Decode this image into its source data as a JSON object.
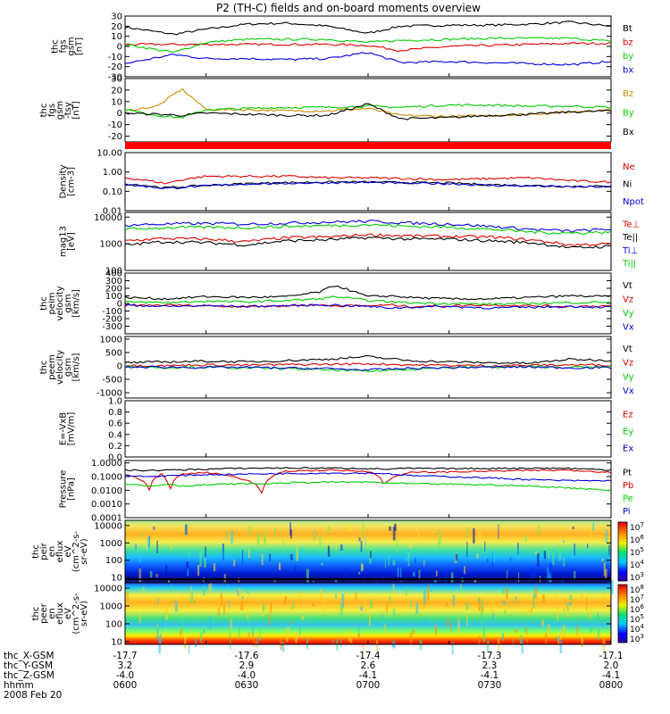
{
  "title": "P2 (TH-C) fields and on-board moments overview",
  "chart_data": [
    {
      "id": "fgs-gsm",
      "type": "line",
      "ylabel_lines": [
        "thc",
        "fgs",
        "gsm",
        "[nT]"
      ],
      "ylim": [
        -30,
        30
      ],
      "yticks": [
        -30,
        -20,
        -10,
        0,
        10,
        20,
        30
      ],
      "x": [
        -17.7,
        -17.64,
        -17.6,
        -17.55,
        -17.5,
        -17.45,
        -17.4,
        -17.36,
        -17.3,
        -17.25,
        -17.2,
        -17.15,
        -17.1
      ],
      "series": [
        {
          "name": "Bt",
          "color": "#000000",
          "values": [
            19,
            12,
            17,
            22,
            23,
            20,
            13,
            20,
            21,
            21,
            22,
            24,
            20
          ]
        },
        {
          "name": "bz",
          "color": "#dd0000",
          "values": [
            2,
            2,
            2,
            2,
            2,
            2,
            1,
            -4,
            0,
            1,
            2,
            3,
            3
          ]
        },
        {
          "name": "by",
          "color": "#00cc00",
          "values": [
            2,
            -6,
            4,
            7,
            7,
            7,
            4,
            6,
            7,
            8,
            8,
            8,
            5
          ]
        },
        {
          "name": "bx",
          "color": "#0000dd",
          "values": [
            -17,
            -8,
            -12,
            -12,
            -13,
            -12,
            -6,
            -16,
            -15,
            -16,
            -17,
            -18,
            -15
          ]
        }
      ]
    },
    {
      "id": "fgs-gsm-tsy",
      "type": "line",
      "ylabel_lines": [
        "thc",
        "fgs",
        "gsm",
        "-tsy",
        "[nT]"
      ],
      "ylim": [
        -25,
        30
      ],
      "yticks": [
        -20,
        -10,
        0,
        10,
        20,
        30
      ],
      "x": [
        -17.7,
        -17.66,
        -17.63,
        -17.6,
        -17.55,
        -17.5,
        -17.45,
        -17.4,
        -17.36,
        -17.3,
        -17.25,
        -17.2,
        -17.15,
        -17.1
      ],
      "series": [
        {
          "name": "Bz",
          "color": "#cc8800",
          "values": [
            2,
            6,
            21,
            3,
            3,
            2,
            2,
            4,
            -2,
            -3,
            -2,
            -1,
            1,
            3
          ]
        },
        {
          "name": "By",
          "color": "#00cc00",
          "values": [
            3,
            -2,
            -4,
            3,
            4,
            5,
            5,
            6,
            5,
            7,
            7,
            6,
            6,
            5
          ]
        },
        {
          "name": "Bx",
          "color": "#000000",
          "values": [
            0,
            -1,
            -2,
            0,
            -1,
            -2,
            -2,
            8,
            -5,
            -4,
            -2,
            -1,
            1,
            2
          ]
        }
      ]
    },
    {
      "id": "status-bar",
      "type": "area",
      "color": "#ff0000"
    },
    {
      "id": "density",
      "type": "line",
      "ylabel_lines": [
        "Density",
        "[cm-3]"
      ],
      "scale": "log",
      "ylim": [
        0.01,
        10
      ],
      "yticks": [
        0.01,
        0.1,
        1,
        10
      ],
      "ytick_labels": [
        "0.01",
        "0.10",
        "1.00",
        "10.00"
      ],
      "x": [
        -17.7,
        -17.65,
        -17.6,
        -17.55,
        -17.5,
        -17.45,
        -17.4,
        -17.35,
        -17.3,
        -17.25,
        -17.2,
        -17.15,
        -17.1
      ],
      "series": [
        {
          "name": "Ne",
          "color": "#dd0000",
          "values": [
            0.5,
            0.25,
            0.6,
            0.6,
            0.6,
            0.5,
            0.5,
            0.45,
            0.4,
            0.45,
            0.5,
            0.35,
            0.3
          ]
        },
        {
          "name": "Ni",
          "color": "#000000",
          "values": [
            0.25,
            0.15,
            0.2,
            0.25,
            0.28,
            0.3,
            0.3,
            0.28,
            0.27,
            0.22,
            0.2,
            0.18,
            0.18
          ]
        },
        {
          "name": "Npot",
          "color": "#0000dd",
          "values": [
            0.22,
            0.14,
            0.19,
            0.24,
            0.26,
            0.28,
            0.29,
            0.26,
            0.25,
            0.2,
            0.19,
            0.17,
            0.17
          ]
        }
      ]
    },
    {
      "id": "temperature",
      "type": "line",
      "ylabel_lines": [
        "mag13",
        "[eV]"
      ],
      "scale": "log",
      "ylim": [
        100,
        15000
      ],
      "yticks": [
        100,
        1000,
        10000
      ],
      "ytick_labels": [
        "100",
        "1000",
        "10000"
      ],
      "x": [
        -17.7,
        -17.65,
        -17.6,
        -17.55,
        -17.5,
        -17.45,
        -17.4,
        -17.35,
        -17.3,
        -17.25,
        -17.2,
        -17.15,
        -17.1
      ],
      "series": [
        {
          "name": "Te⊥",
          "color": "#dd0000",
          "values": [
            1300,
            1600,
            1500,
            1200,
            1700,
            1800,
            2200,
            2000,
            1900,
            1800,
            1400,
            900,
            1000
          ]
        },
        {
          "name": "Te||",
          "color": "#000000",
          "values": [
            900,
            1200,
            1100,
            900,
            1300,
            1400,
            1700,
            1500,
            1500,
            1300,
            1100,
            700,
            800
          ]
        },
        {
          "name": "Ti⊥",
          "color": "#0000dd",
          "values": [
            5000,
            5500,
            5800,
            5500,
            6000,
            6500,
            7000,
            6000,
            5500,
            4500,
            3500,
            3000,
            3500
          ]
        },
        {
          "name": "Ti||",
          "color": "#00cc00",
          "values": [
            3500,
            4000,
            4200,
            4000,
            4500,
            4800,
            5200,
            4500,
            4200,
            3500,
            2800,
            2500,
            2800
          ]
        }
      ]
    },
    {
      "id": "peim-velocity",
      "type": "line",
      "ylabel_lines": [
        "thc",
        "peim",
        "velocity",
        "gsm",
        "[km/s]"
      ],
      "ylim": [
        -400,
        400
      ],
      "yticks": [
        -300,
        -200,
        -100,
        0,
        100,
        200,
        300,
        400
      ],
      "x": [
        -17.7,
        -17.65,
        -17.6,
        -17.55,
        -17.5,
        -17.46,
        -17.44,
        -17.4,
        -17.37,
        -17.35,
        -17.3,
        -17.25,
        -17.2,
        -17.15,
        -17.1
      ],
      "series": [
        {
          "name": "Vt",
          "color": "#000000",
          "values": [
            80,
            60,
            90,
            80,
            90,
            150,
            240,
            90,
            100,
            80,
            60,
            60,
            80,
            100,
            90
          ]
        },
        {
          "name": "Vz",
          "color": "#dd0000",
          "values": [
            -30,
            -20,
            -30,
            -40,
            -30,
            -20,
            -30,
            -30,
            -20,
            -40,
            -30,
            -20,
            -30,
            -40,
            -30
          ]
        },
        {
          "name": "Vy",
          "color": "#00cc00",
          "values": [
            20,
            10,
            30,
            20,
            40,
            60,
            90,
            40,
            20,
            10,
            0,
            -10,
            0,
            10,
            20
          ]
        },
        {
          "name": "Vx",
          "color": "#0000dd",
          "values": [
            -20,
            -40,
            -30,
            -40,
            -30,
            -20,
            -20,
            -40,
            -60,
            -50,
            -40,
            -60,
            -50,
            -40,
            -50
          ]
        }
      ]
    },
    {
      "id": "peem-velocity",
      "type": "line",
      "ylabel_lines": [
        "thc",
        "peem",
        "velocity",
        "gsm",
        "[km/s]"
      ],
      "ylim": [
        -1200,
        1100
      ],
      "yticks": [
        -1000,
        -500,
        0,
        500,
        1000
      ],
      "x": [
        -17.7,
        -17.65,
        -17.6,
        -17.55,
        -17.5,
        -17.45,
        -17.4,
        -17.35,
        -17.3,
        -17.25,
        -17.2,
        -17.15,
        -17.1
      ],
      "series": [
        {
          "name": "Vt",
          "color": "#000000",
          "values": [
            120,
            150,
            180,
            150,
            200,
            250,
            350,
            200,
            150,
            120,
            100,
            250,
            200
          ]
        },
        {
          "name": "Vz",
          "color": "#dd0000",
          "values": [
            20,
            10,
            40,
            30,
            50,
            60,
            80,
            40,
            20,
            10,
            20,
            40,
            30
          ]
        },
        {
          "name": "Vy",
          "color": "#00cc00",
          "values": [
            -20,
            -60,
            -40,
            -80,
            -100,
            -150,
            -200,
            -120,
            -60,
            -40,
            -30,
            -50,
            -40
          ]
        },
        {
          "name": "Vx",
          "color": "#0000dd",
          "values": [
            -50,
            -40,
            -60,
            -50,
            -80,
            -100,
            -150,
            -90,
            -60,
            -50,
            -40,
            -70,
            -60
          ]
        }
      ]
    },
    {
      "id": "efield",
      "type": "line",
      "ylabel_lines": [
        "E=-VxB",
        "[mV/m]"
      ],
      "ylim": [
        0,
        1
      ],
      "yticks": [
        0,
        0.2,
        0.4,
        0.6,
        0.8,
        1.0
      ],
      "ytick_labels": [
        "0.0",
        "0.2",
        "0.4",
        "0.6",
        "0.8",
        "1.0"
      ],
      "series": [
        {
          "name": "Ez",
          "color": "#dd0000"
        },
        {
          "name": "Ey",
          "color": "#00cc00"
        },
        {
          "name": "Ex",
          "color": "#0000dd"
        }
      ]
    },
    {
      "id": "pressure",
      "type": "line",
      "ylabel_lines": [
        "Pressure",
        "[nPa]"
      ],
      "scale": "log",
      "ylim": [
        0.0001,
        1.5
      ],
      "yticks": [
        0.0001,
        0.001,
        0.01,
        0.1,
        1
      ],
      "ytick_labels": [
        "0.0001",
        "0.0010",
        "0.0100",
        "0.1000",
        "1.0000"
      ],
      "x": [
        -17.7,
        -17.67,
        -17.655,
        -17.645,
        -17.63,
        -17.6,
        -17.56,
        -17.53,
        -17.5,
        -17.45,
        -17.4,
        -17.38,
        -17.35,
        -17.3,
        -17.25,
        -17.2,
        -17.15,
        -17.1
      ],
      "series": [
        {
          "name": "Pt",
          "color": "#000000",
          "values": [
            0.3,
            0.28,
            0.3,
            0.3,
            0.32,
            0.35,
            0.4,
            0.42,
            0.43,
            0.42,
            0.4,
            0.35,
            0.4,
            0.38,
            0.4,
            0.42,
            0.4,
            0.3
          ]
        },
        {
          "name": "Pb",
          "color": "#dd0000",
          "values": [
            0.15,
            0.01,
            0.15,
            0.0015,
            0.15,
            0.2,
            0.08,
            0.003,
            0.25,
            0.3,
            0.25,
            0.02,
            0.2,
            0.22,
            0.25,
            0.28,
            0.3,
            0.2
          ]
        },
        {
          "name": "Pe",
          "color": "#00cc00",
          "values": [
            0.03,
            0.02,
            0.025,
            0.03,
            0.02,
            0.025,
            0.03,
            0.03,
            0.035,
            0.04,
            0.04,
            0.035,
            0.03,
            0.028,
            0.025,
            0.02,
            0.015,
            0.01
          ]
        },
        {
          "name": "Pi",
          "color": "#0000dd",
          "values": [
            0.12,
            0.1,
            0.11,
            0.12,
            0.12,
            0.14,
            0.15,
            0.16,
            0.17,
            0.18,
            0.18,
            0.17,
            0.12,
            0.1,
            0.08,
            0.06,
            0.05,
            0.05
          ]
        }
      ]
    },
    {
      "id": "peir-spectrogram",
      "type": "heatmap",
      "ylabel_lines": [
        "thc",
        "peir",
        "en",
        "eflux",
        "eV",
        "(cm^2-s-",
        "sr-eV)"
      ],
      "scale": "log",
      "ylim": [
        5,
        20000
      ],
      "yticks": [
        10,
        100,
        1000,
        10000
      ],
      "ytick_labels": [
        "10",
        "100",
        "1000",
        "10000"
      ],
      "colorbar_labels": [
        "10^7",
        "10^6",
        "10^5",
        "10^4",
        "10^3"
      ]
    },
    {
      "id": "peer-spectrogram",
      "type": "heatmap",
      "ylabel_lines": [
        "thc",
        "peer",
        "en",
        "eflux",
        "eV",
        "(cm^2-s-",
        "sr-eV)"
      ],
      "scale": "log",
      "ylim": [
        7,
        20000
      ],
      "yticks": [
        10,
        100,
        1000,
        10000
      ],
      "ytick_labels": [
        "10",
        "100",
        "1000",
        "10000"
      ],
      "colorbar_labels": [
        "10^8",
        "10^7",
        "10^6",
        "10^5",
        "10^4",
        "10^3"
      ]
    }
  ],
  "x_axis": {
    "rows": [
      {
        "label": "thc_X-GSM",
        "values": [
          "-17.7",
          "-17.6",
          "-17.4",
          "-17.3",
          "-17.1"
        ]
      },
      {
        "label": "thc_Y-GSM",
        "values": [
          "3.2",
          "2.9",
          "2.6",
          "2.3",
          "2.0"
        ]
      },
      {
        "label": "thc_Z-GSM",
        "values": [
          "-4.0",
          "-4.0",
          "-4.1",
          "-4.1",
          "-4.1"
        ]
      },
      {
        "label": "hhmm",
        "values": [
          "0600",
          "0630",
          "0700",
          "0730",
          "0800"
        ]
      }
    ],
    "date": "2008 Feb 20"
  }
}
